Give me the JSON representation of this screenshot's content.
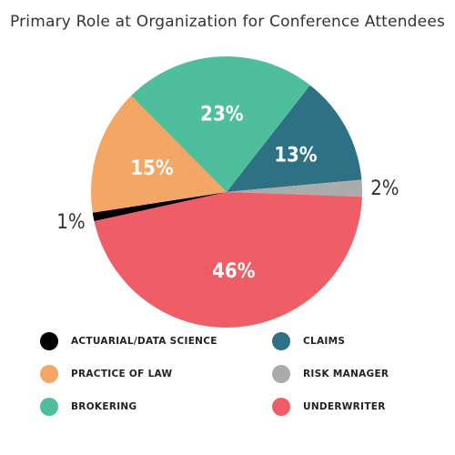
{
  "chart_data": {
    "type": "pie",
    "title": "Primary Role at Organization for Conference Attendees",
    "categories": [
      "Claims",
      "Risk Manager",
      "Underwriter",
      "Actuarial/Data Science",
      "Practice of Law",
      "Brokering"
    ],
    "values": [
      13,
      2,
      46,
      1,
      15,
      23
    ],
    "value_labels": [
      "13%",
      "2%",
      "46%",
      "1%",
      "15%",
      "23%"
    ],
    "colors": [
      "#2e7184",
      "#a9abad",
      "#ef5d67",
      "#000000",
      "#f4a765",
      "#4fbe9c"
    ],
    "start_angle_deg": 52,
    "legend_position": "bottom",
    "legend": [
      {
        "label": "ACTUARIAL/DATA SCIENCE",
        "color": "#000000"
      },
      {
        "label": "CLAIMS",
        "color": "#2e7184"
      },
      {
        "label": "PRACTICE OF LAW",
        "color": "#f4a765"
      },
      {
        "label": "RISK MANAGER",
        "color": "#a9abad"
      },
      {
        "label": "BROKERING",
        "color": "#4fbe9c"
      },
      {
        "label": "UNDERWRITER",
        "color": "#ef5d67"
      }
    ]
  }
}
